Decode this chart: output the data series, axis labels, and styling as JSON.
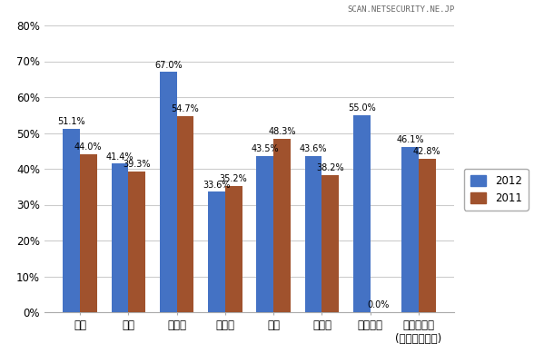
{
  "categories": [
    "日本",
    "米国",
    "インド",
    "ドイツ",
    "英国",
    "カナダ",
    "ブラジル",
    "グローバル\n(ブラジル除く)"
  ],
  "values_2012": [
    51.1,
    41.4,
    67.0,
    33.6,
    43.5,
    43.6,
    55.0,
    46.1
  ],
  "values_2011": [
    44.0,
    39.3,
    54.7,
    35.2,
    48.3,
    38.2,
    0.0,
    42.8
  ],
  "color_2012": "#4472C4",
  "color_2011": "#A0522D",
  "legend_2012": "2012",
  "legend_2011": "2011",
  "ylim": [
    0,
    80
  ],
  "yticks": [
    0,
    10,
    20,
    30,
    40,
    50,
    60,
    70,
    80
  ],
  "ytick_labels": [
    "0%",
    "10%",
    "20%",
    "30%",
    "40%",
    "50%",
    "60%",
    "70%",
    "80%"
  ],
  "watermark": "SCAN.NETSECURITY.NE.JP",
  "bar_width": 0.35,
  "label_fontsize": 7.0,
  "tick_fontsize": 8.5,
  "legend_fontsize": 8.5,
  "background_color": "#FFFFFF",
  "grid_color": "#CCCCCC"
}
